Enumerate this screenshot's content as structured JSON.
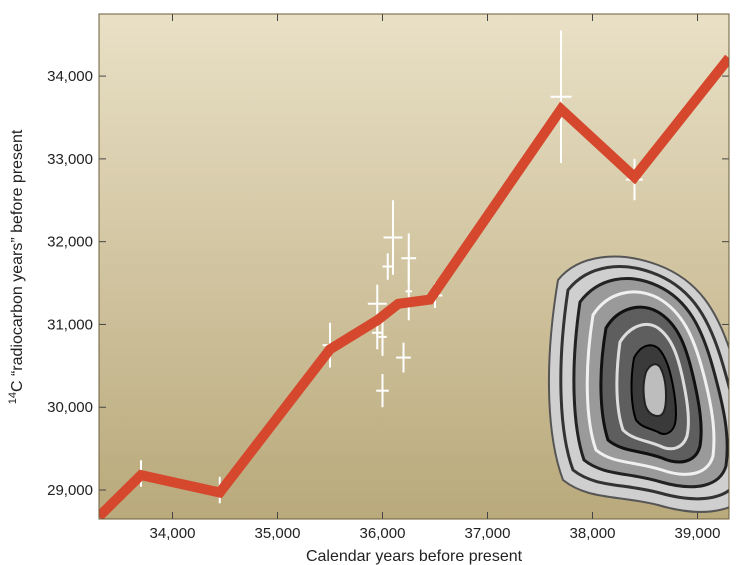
{
  "chart_data": {
    "type": "line",
    "xlabel": "Calendar years before present",
    "ylabel_main": "C “radiocarbon years” before present",
    "ylabel_superscript": "14",
    "xlim": [
      33300,
      39300
    ],
    "ylim": [
      28650,
      34750
    ],
    "x_ticks": [
      34000,
      35000,
      36000,
      37000,
      38000,
      39000
    ],
    "x_tick_labels": [
      "34,000",
      "35,000",
      "36,000",
      "37,000",
      "38,000",
      "39,000"
    ],
    "y_ticks": [
      29000,
      30000,
      31000,
      32000,
      33000,
      34000
    ],
    "y_tick_labels": [
      "29,000",
      "30,000",
      "31,000",
      "32,000",
      "33,000",
      "34,000"
    ],
    "series": [
      {
        "x": [
          33300,
          33700,
          34450,
          35500,
          35950,
          36150,
          36450,
          37700,
          38400,
          39300
        ],
        "y": [
          28680,
          29180,
          28970,
          30700,
          31050,
          31250,
          31300,
          33600,
          32780,
          34220
        ]
      }
    ],
    "points": [
      {
        "x": 33700,
        "y": 29200,
        "xerr": 40,
        "yerr": 160
      },
      {
        "x": 34450,
        "y": 29000,
        "xerr": 30,
        "yerr": 160
      },
      {
        "x": 35500,
        "y": 30750,
        "xerr": 70,
        "yerr": 270
      },
      {
        "x": 35950,
        "y": 31250,
        "xerr": 90,
        "yerr": 230
      },
      {
        "x": 35950,
        "y": 30900,
        "xerr": 50,
        "yerr": 200
      },
      {
        "x": 36000,
        "y": 30850,
        "xerr": 40,
        "yerr": 230
      },
      {
        "x": 36000,
        "y": 30200,
        "xerr": 60,
        "yerr": 200
      },
      {
        "x": 36050,
        "y": 31700,
        "xerr": 50,
        "yerr": 160
      },
      {
        "x": 36100,
        "y": 32050,
        "xerr": 90,
        "yerr": 450
      },
      {
        "x": 36200,
        "y": 30600,
        "xerr": 70,
        "yerr": 180
      },
      {
        "x": 36250,
        "y": 31800,
        "xerr": 70,
        "yerr": 300
      },
      {
        "x": 36250,
        "y": 31400,
        "xerr": 30,
        "yerr": 350
      },
      {
        "x": 36500,
        "y": 31350,
        "xerr": 70,
        "yerr": 150
      },
      {
        "x": 37700,
        "y": 33750,
        "xerr": 100,
        "yerr": 800
      },
      {
        "x": 38400,
        "y": 32750,
        "xerr": 80,
        "yerr": 250
      }
    ],
    "colors": {
      "background_top": "#e9e0c6",
      "background_bottom": "#b9a97b",
      "line": "#d5482d",
      "error_bars": "#ffffff"
    },
    "inset_image": "coral-cross-section"
  }
}
